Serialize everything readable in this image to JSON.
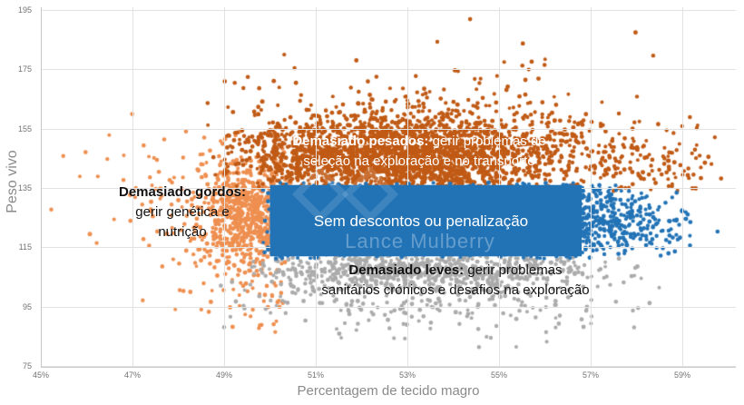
{
  "chart_data": {
    "type": "scatter",
    "xlabel": "Percentagem de tecido magro",
    "ylabel": "Peso vivo",
    "x_ticks": [
      45,
      47,
      49,
      51,
      53,
      55,
      57,
      59
    ],
    "x_tick_labels": [
      "45%",
      "47%",
      "49%",
      "51%",
      "53%",
      "55%",
      "57%",
      "59%"
    ],
    "y_ticks": [
      195,
      175,
      155,
      135,
      115,
      95,
      75
    ],
    "xlim": [
      44.9,
      60.2
    ],
    "ylim": [
      75,
      195
    ],
    "grid": true,
    "colors": {
      "too_heavy": "#c05a15",
      "too_fat": "#ee8f50",
      "no_penalty": "#2273b6",
      "too_light": "#ababab",
      "gridline": "#e2e2e2",
      "axis_text": "#8a8a8a"
    },
    "zone": {
      "label": "Sem descontos ou penalização",
      "x0": 50.0,
      "x1": 56.8,
      "y0": 112,
      "y1": 136,
      "fill": "#2273b6"
    },
    "annotations": {
      "heavy": {
        "bold": "Demasiado pesados:",
        "line1_rest": " gerir problemas de",
        "line2": "seleção na exploração e no transporte"
      },
      "fat": {
        "bold": "Demasiado gordos:",
        "line2": "gerir genética e",
        "line3": "nutrição"
      },
      "light": {
        "bold": "Demasiado leves:",
        "line1_rest": " gerir problemas",
        "line2": "sanitários crónicos e desafios na exploração"
      }
    },
    "watermark": "Lance Mulberry",
    "clusters": [
      {
        "name": "too-fat-sparse",
        "color": "#ee8f50",
        "layer": 1,
        "n": 150,
        "x_mean": 48.5,
        "x_sd": 1.05,
        "x_clip": [
          44.95,
          50.4
        ],
        "y_mean": 126,
        "y_sd": 13,
        "y_clip": [
          86,
          163
        ]
      },
      {
        "name": "too-fat-dense",
        "color": "#ee8f50",
        "layer": 1,
        "n": 650,
        "x_mean": 49.55,
        "x_sd": 0.5,
        "x_clip": [
          47.9,
          50.45
        ],
        "y_mean": 127,
        "y_sd": 9,
        "y_clip": [
          106,
          153
        ]
      },
      {
        "name": "too-fat-low",
        "color": "#ee8f50",
        "layer": 1,
        "n": 50,
        "x_mean": 49.7,
        "x_sd": 0.5,
        "x_clip": [
          48.4,
          50.6
        ],
        "y_mean": 99,
        "y_sd": 7,
        "y_clip": [
          85,
          112
        ]
      },
      {
        "name": "too-heavy-dense",
        "color": "#c05a15",
        "layer": 1,
        "n": 2300,
        "x_mean": 52.9,
        "x_sd": 1.75,
        "x_clip": [
          49.0,
          58.8
        ],
        "y_mean": 145.5,
        "y_sd": 6.5,
        "y_clip": [
          135.3,
          170
        ]
      },
      {
        "name": "too-heavy-sparse",
        "color": "#c05a15",
        "layer": 1,
        "n": 480,
        "x_mean": 53.3,
        "x_sd": 2.1,
        "x_clip": [
          48.6,
          59.4
        ],
        "y_mean": 153,
        "y_sd": 9.5,
        "y_clip": [
          135.3,
          193
        ]
      },
      {
        "name": "too-heavy-peak",
        "color": "#c05a15",
        "layer": 1,
        "n": 10,
        "x_mean": 55.5,
        "x_sd": 1.8,
        "x_clip": [
          50,
          59
        ],
        "y_mean": 183,
        "y_sd": 6,
        "y_clip": [
          172,
          194
        ]
      },
      {
        "name": "too-heavy-right",
        "color": "#c05a15",
        "layer": 1,
        "n": 130,
        "x_mean": 58.0,
        "x_sd": 1.0,
        "x_clip": [
          56.3,
          59.9
        ],
        "y_mean": 143,
        "y_sd": 6,
        "y_clip": [
          134,
          162
        ]
      },
      {
        "name": "too-light-dense",
        "color": "#ababab",
        "layer": 1,
        "n": 620,
        "x_mean": 53.3,
        "x_sd": 1.85,
        "x_clip": [
          49.5,
          58.3
        ],
        "y_mean": 107.5,
        "y_sd": 3.5,
        "y_clip": [
          98,
          112.5
        ]
      },
      {
        "name": "too-light-sparse",
        "color": "#ababab",
        "layer": 1,
        "n": 300,
        "x_mean": 53.6,
        "x_sd": 2.1,
        "x_clip": [
          48.9,
          59.3
        ],
        "y_mean": 100,
        "y_sd": 7.5,
        "y_clip": [
          81,
          112.5
        ]
      },
      {
        "name": "no-penalty-right",
        "color": "#2273b6",
        "layer": 2,
        "n": 380,
        "x_mean": 57.3,
        "x_sd": 0.85,
        "x_clip": [
          56.3,
          59.8
        ],
        "y_mean": 124,
        "y_sd": 6.5,
        "y_clip": [
          112,
          136
        ]
      },
      {
        "name": "no-penalty-texture",
        "color": "#2273b6",
        "layer": 2,
        "n": 450,
        "dist": "uniform",
        "x_range": [
          49.85,
          57.3
        ],
        "y_range": [
          111.2,
          136.8
        ]
      }
    ]
  }
}
